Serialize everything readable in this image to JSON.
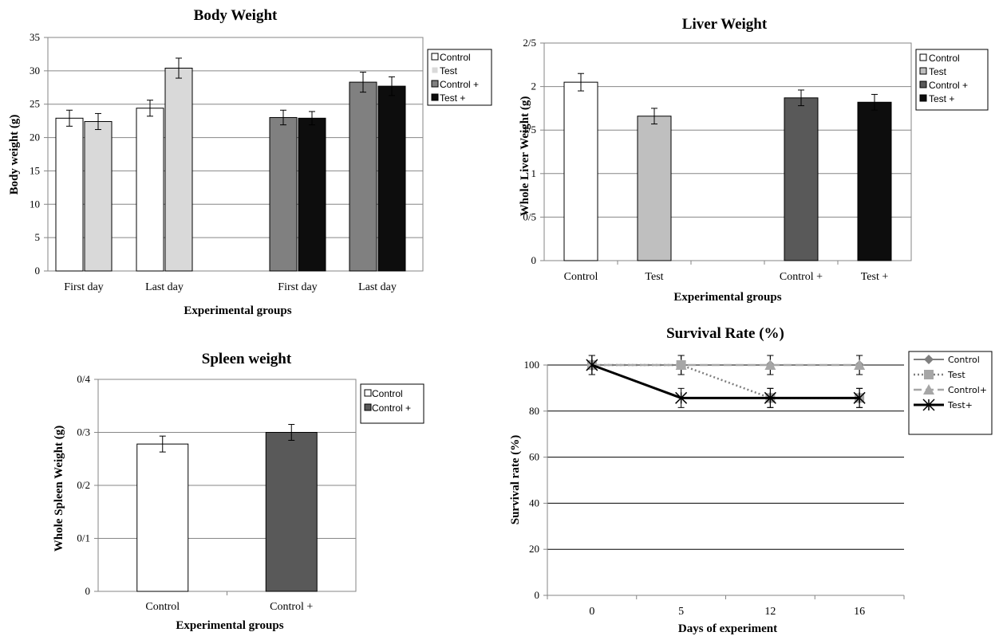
{
  "chart_data": [
    {
      "type": "bar",
      "title": "Body Weight",
      "xlabel": "Experimental  groups",
      "ylabel": "Body weight (g)",
      "ylim": [
        0,
        35
      ],
      "yticks": [
        "0",
        "5",
        "10",
        "15",
        "20",
        "25",
        "30",
        "35"
      ],
      "categories": [
        "First day",
        "Last day",
        "First day",
        "Last day"
      ],
      "legend": [
        "Control",
        "Test",
        "Control +",
        "Test +"
      ],
      "legend_position": "right",
      "colors": [
        "#ffffff",
        "#d9d9d9",
        "#808080",
        "#0d0d0d"
      ],
      "series": [
        {
          "name": "Control",
          "values": [
            22.9,
            24.4,
            null,
            null
          ],
          "errors": [
            1.2,
            1.2,
            null,
            null
          ]
        },
        {
          "name": "Test",
          "values": [
            22.4,
            30.4,
            null,
            null
          ],
          "errors": [
            1.2,
            1.5,
            null,
            null
          ]
        },
        {
          "name": "Control +",
          "values": [
            null,
            null,
            23.0,
            28.3
          ],
          "errors": [
            null,
            null,
            1.1,
            1.5
          ]
        },
        {
          "name": "Test +",
          "values": [
            null,
            null,
            22.9,
            27.7
          ],
          "errors": [
            null,
            null,
            1.0,
            1.4
          ]
        }
      ],
      "grid": true
    },
    {
      "type": "bar",
      "title": "Liver  Weight",
      "xlabel": "Experimental  groups",
      "ylabel": "Whole Liver Weight (g)",
      "ylim": [
        0,
        2.5
      ],
      "yticks": [
        "0",
        "0/5",
        "1",
        "1/5",
        "2",
        "2/5"
      ],
      "categories": [
        "Control",
        "Test",
        "",
        "Control +",
        "Test +"
      ],
      "legend": [
        "Control",
        "Test",
        "Control +",
        "Test +"
      ],
      "legend_position": "right",
      "colors": [
        "#ffffff",
        "#bfbfbf",
        "#595959",
        "#0d0d0d"
      ],
      "values": [
        2.05,
        1.66,
        null,
        1.87,
        1.82
      ],
      "errors": [
        0.1,
        0.09,
        null,
        0.09,
        0.09
      ],
      "grid": true
    },
    {
      "type": "bar",
      "title": "Spleen weight",
      "xlabel": "Experimental  groups",
      "ylabel": "Whole Spleen Weight (g)",
      "ylim": [
        0,
        0.4
      ],
      "yticks": [
        "0",
        "0/1",
        "0/2",
        "0/3",
        "0/4"
      ],
      "categories": [
        "Control",
        "Control +"
      ],
      "legend": [
        "Control",
        "Control +"
      ],
      "legend_position": "right",
      "colors": [
        "#ffffff",
        "#595959"
      ],
      "values": [
        0.278,
        0.3
      ],
      "errors": [
        0.015,
        0.015
      ],
      "grid": true
    },
    {
      "type": "line",
      "title": "Survival Rate (%)",
      "xlabel": "Days of experiment",
      "ylabel": "Survival  rate (%)",
      "ylim": [
        0,
        100
      ],
      "yticks": [
        "0",
        "20",
        "40",
        "60",
        "80",
        "100"
      ],
      "categories": [
        "0",
        "5",
        "12",
        "16"
      ],
      "legend_position": "right",
      "series": [
        {
          "name": "Control",
          "values": [
            100,
            100,
            100,
            100
          ],
          "color": "#7f7f7f",
          "style": "solid",
          "marker": "diamond"
        },
        {
          "name": "Test",
          "values": [
            100,
            100,
            85.7,
            85.7
          ],
          "color": "#7f7f7f",
          "style": "dotted",
          "marker": "square"
        },
        {
          "name": "Control+",
          "values": [
            100,
            100,
            100,
            100
          ],
          "color": "#a6a6a6",
          "style": "dashed",
          "marker": "triangle"
        },
        {
          "name": "Test+",
          "values": [
            100,
            85.7,
            85.7,
            85.7
          ],
          "color": "#000000",
          "style": "solid",
          "marker": "star"
        }
      ],
      "errors": 5,
      "grid": true
    }
  ]
}
